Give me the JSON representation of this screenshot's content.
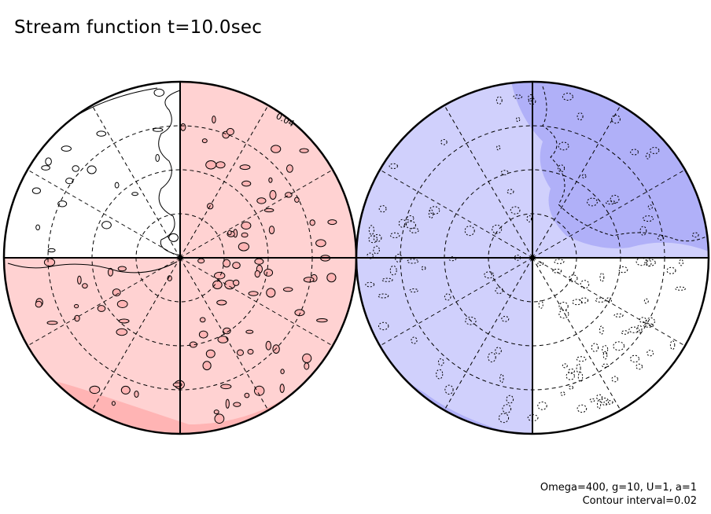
{
  "title": "Stream function t=10.0sec",
  "contour_label": "0.04",
  "params": "Omega=400, g=10, U=1, a=1",
  "interval": "Contour interval=0.02",
  "colors": {
    "positive_light": "#ffd2d2",
    "positive_dark": "#ffb4b4",
    "negative_light": "#d0d0fc",
    "negative_dark": "#b0b0f8",
    "line": "#000000",
    "background": "#ffffff"
  }
}
